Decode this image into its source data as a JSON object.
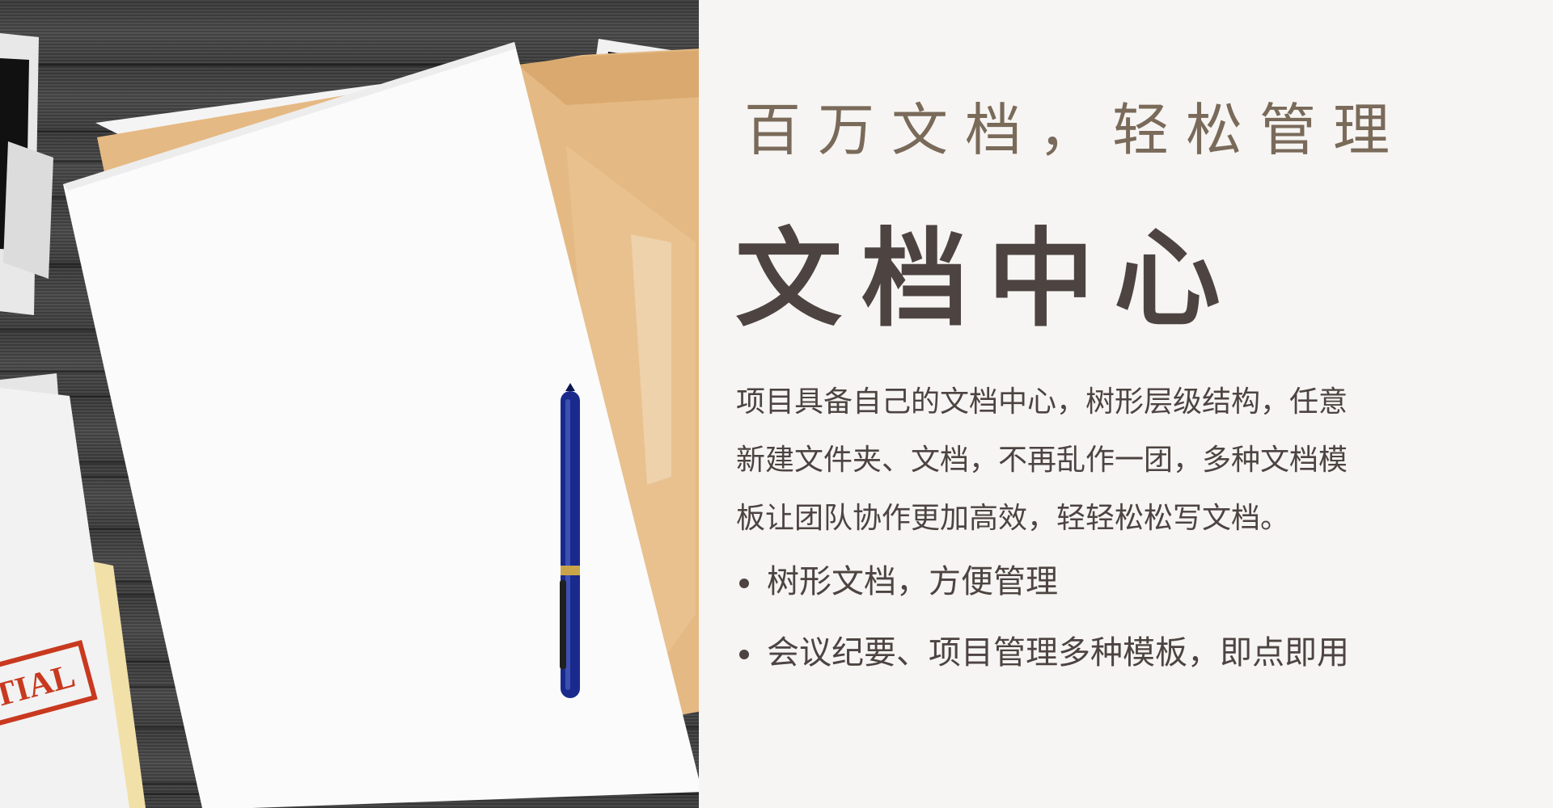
{
  "hero": {
    "subtitle": "百万文档，轻松管理",
    "title": "文档中心",
    "description": [
      "项目具备自己的文档中心，树形层级结构，任意",
      "新建文件夹、文档，不再乱作一团，多种文档模",
      "板让团队协作更加高效，轻轻松松写文档。"
    ],
    "features": [
      "树形文档，方便管理",
      "会议纪要、项目管理多种模板，即点即用"
    ]
  },
  "image": {
    "stamp_text": "TIAL",
    "colors": {
      "wood": "#3a3a3a",
      "paper": "#fbfbfb",
      "folder": "#e5b983",
      "pen": "#1a2a8c",
      "stamp": "#c8391f"
    }
  },
  "colors": {
    "background": "#f6f5f3",
    "subtitle": "#7a6a5a",
    "text": "#4d4441"
  }
}
